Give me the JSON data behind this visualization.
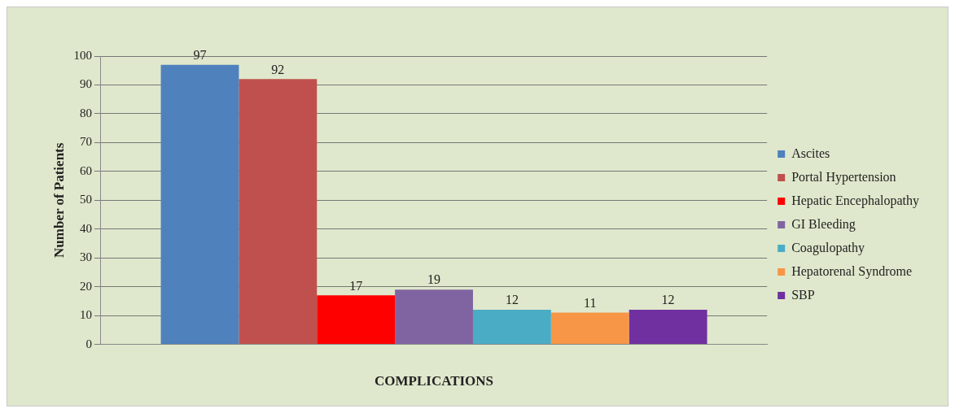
{
  "chart_data": {
    "type": "bar",
    "xlabel": "COMPLICATIONS",
    "ylabel": "Number of Patients",
    "categories": [
      null
    ],
    "series": [
      {
        "name": "Ascites",
        "color": "#4f81bd",
        "values": [
          97
        ]
      },
      {
        "name": "Portal Hypertension",
        "color": "#c0504d",
        "values": [
          92
        ]
      },
      {
        "name": "Hepatic Encephalopathy",
        "color": "#ff0000",
        "values": [
          17
        ]
      },
      {
        "name": "GI Bleeding",
        "color": "#8064a2",
        "values": [
          19
        ]
      },
      {
        "name": "Coagulopathy",
        "color": "#4bacc6",
        "values": [
          12
        ]
      },
      {
        "name": "Hepatorenal Syndrome",
        "color": "#f79646",
        "values": [
          11
        ]
      },
      {
        "name": "SBP",
        "color": "#7030a0",
        "values": [
          12
        ]
      }
    ],
    "ylim": [
      0,
      100
    ],
    "yticks": [
      0,
      10,
      20,
      30,
      40,
      50,
      60,
      70,
      80,
      90,
      100
    ],
    "grid": "y",
    "legend": "right",
    "data_labels": true
  }
}
